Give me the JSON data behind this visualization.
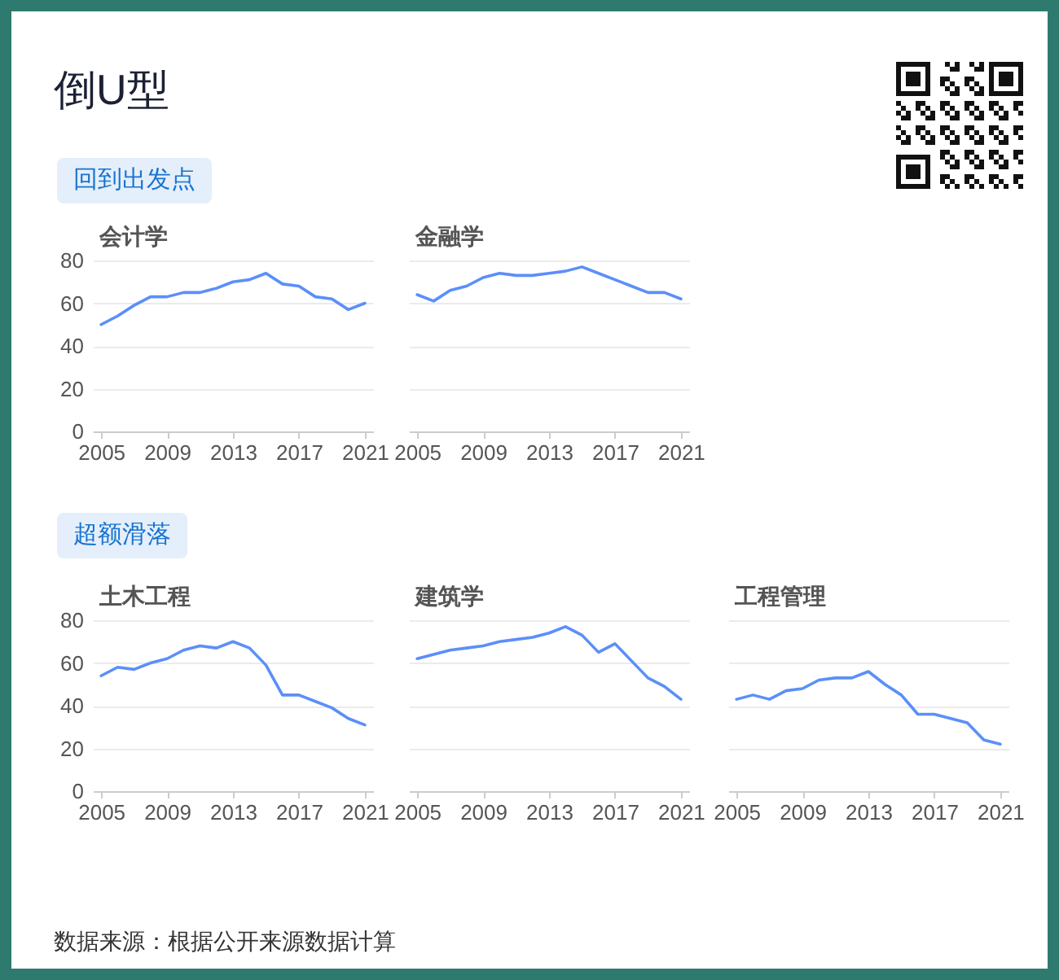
{
  "chart_data": [
    {
      "type": "other",
      "title": "倒U型",
      "annotations": [
        "数据来源：根据公开来源数据计算"
      ]
    },
    {
      "type": "line",
      "title": "会计学",
      "annotations": [
        "回到出发点"
      ],
      "x": [
        2005,
        2006,
        2007,
        2008,
        2009,
        2010,
        2011,
        2012,
        2013,
        2014,
        2015,
        2016,
        2017,
        2018,
        2019,
        2020,
        2021
      ],
      "values": [
        50,
        54,
        59,
        63,
        63,
        65,
        65,
        67,
        70,
        71,
        74,
        69,
        68,
        63,
        62,
        57,
        60
      ],
      "color": "#5b8ff9",
      "xlim": [
        2004.5,
        2021.5
      ],
      "xticks": [
        2005,
        2009,
        2013,
        2017,
        2021
      ],
      "ylim": [
        0,
        80
      ],
      "yticks": [
        0,
        20,
        40,
        60,
        80
      ],
      "grid": "y"
    },
    {
      "type": "line",
      "title": "金融学",
      "x": [
        2005,
        2006,
        2007,
        2008,
        2009,
        2010,
        2011,
        2012,
        2013,
        2014,
        2015,
        2016,
        2017,
        2018,
        2019,
        2020,
        2021
      ],
      "values": [
        64,
        61,
        66,
        68,
        72,
        74,
        73,
        73,
        74,
        75,
        77,
        74,
        71,
        68,
        65,
        65,
        62
      ],
      "color": "#5b8ff9",
      "xlim": [
        2004.5,
        2021.5
      ],
      "xticks": [
        2005,
        2009,
        2013,
        2017,
        2021
      ],
      "ylim": [
        0,
        80
      ],
      "yticks": [
        0,
        20,
        40,
        60,
        80
      ],
      "grid": "y",
      "tick_labels": "x"
    },
    {
      "type": "line",
      "title": "土木工程",
      "annotations": [
        "超额滑落"
      ],
      "x": [
        2005,
        2006,
        2007,
        2008,
        2009,
        2010,
        2011,
        2012,
        2013,
        2014,
        2015,
        2016,
        2017,
        2018,
        2019,
        2020,
        2021
      ],
      "values": [
        54,
        58,
        57,
        60,
        62,
        66,
        68,
        67,
        70,
        67,
        59,
        45,
        45,
        42,
        39,
        34,
        31
      ],
      "color": "#5b8ff9",
      "xlim": [
        2004.5,
        2021.5
      ],
      "xticks": [
        2005,
        2009,
        2013,
        2017,
        2021
      ],
      "ylim": [
        0,
        80
      ],
      "yticks": [
        0,
        20,
        40,
        60,
        80
      ],
      "grid": "y"
    },
    {
      "type": "line",
      "title": "建筑学",
      "x": [
        2005,
        2006,
        2007,
        2008,
        2009,
        2010,
        2011,
        2012,
        2013,
        2014,
        2015,
        2016,
        2017,
        2018,
        2019,
        2020,
        2021
      ],
      "values": [
        62,
        64,
        66,
        67,
        68,
        70,
        71,
        72,
        74,
        77,
        73,
        65,
        69,
        61,
        53,
        49,
        43
      ],
      "color": "#5b8ff9",
      "xlim": [
        2004.5,
        2021.5
      ],
      "xticks": [
        2005,
        2009,
        2013,
        2017,
        2021
      ],
      "ylim": [
        0,
        80
      ],
      "yticks": [
        0,
        20,
        40,
        60,
        80
      ],
      "grid": "y",
      "tick_labels": "x"
    },
    {
      "type": "line",
      "title": "工程管理",
      "x": [
        2005,
        2006,
        2007,
        2008,
        2009,
        2010,
        2011,
        2012,
        2013,
        2014,
        2015,
        2016,
        2017,
        2018,
        2019,
        2020,
        2021
      ],
      "values": [
        43,
        45,
        43,
        47,
        48,
        52,
        53,
        53,
        56,
        50,
        45,
        36,
        36,
        34,
        32,
        24,
        22
      ],
      "color": "#5b8ff9",
      "xlim": [
        2004.5,
        2021.5
      ],
      "xticks": [
        2005,
        2009,
        2013,
        2017,
        2021
      ],
      "ylim": [
        0,
        80
      ],
      "yticks": [
        0,
        20,
        40,
        60,
        80
      ],
      "grid": "y",
      "tick_labels": "x"
    }
  ]
}
